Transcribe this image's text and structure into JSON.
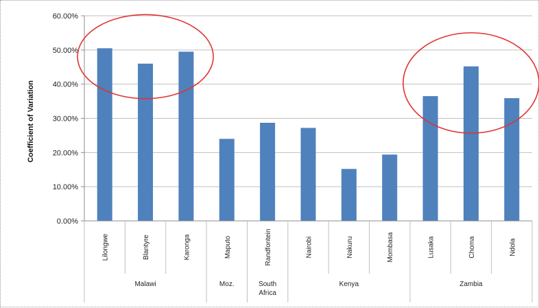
{
  "chart_data": {
    "type": "bar",
    "title": "",
    "xlabel": "",
    "ylabel": "Coefficient of Variation",
    "ylim": [
      0,
      0.6
    ],
    "yticks": [
      "0.00%",
      "10.00%",
      "20.00%",
      "30.00%",
      "40.00%",
      "50.00%",
      "60.00%"
    ],
    "ytick_values": [
      0,
      0.1,
      0.2,
      0.3,
      0.4,
      0.5,
      0.6
    ],
    "grid": true,
    "legend": "none",
    "bar_color": "#4f81bd",
    "highlight_color": "#e0332f",
    "categories": [
      "Lilongwe",
      "Blantyre",
      "Karonga",
      "Maputo",
      "Randfontein",
      "Nairobi",
      "Nakuru",
      "Mombasa",
      "Lusaka",
      "Choma",
      "Ndola"
    ],
    "values": [
      0.505,
      0.46,
      0.495,
      0.24,
      0.287,
      0.272,
      0.152,
      0.194,
      0.365,
      0.452,
      0.359
    ],
    "groups": [
      {
        "label": "Malawi",
        "count": 3
      },
      {
        "label": "Moz.",
        "count": 1
      },
      {
        "label": "South Africa",
        "label_lines": [
          "South",
          "Africa"
        ],
        "count": 1
      },
      {
        "label": "Kenya",
        "count": 3
      },
      {
        "label": "Zambia",
        "count": 3
      }
    ],
    "highlighted_groups": [
      "Malawi",
      "Zambia"
    ]
  }
}
